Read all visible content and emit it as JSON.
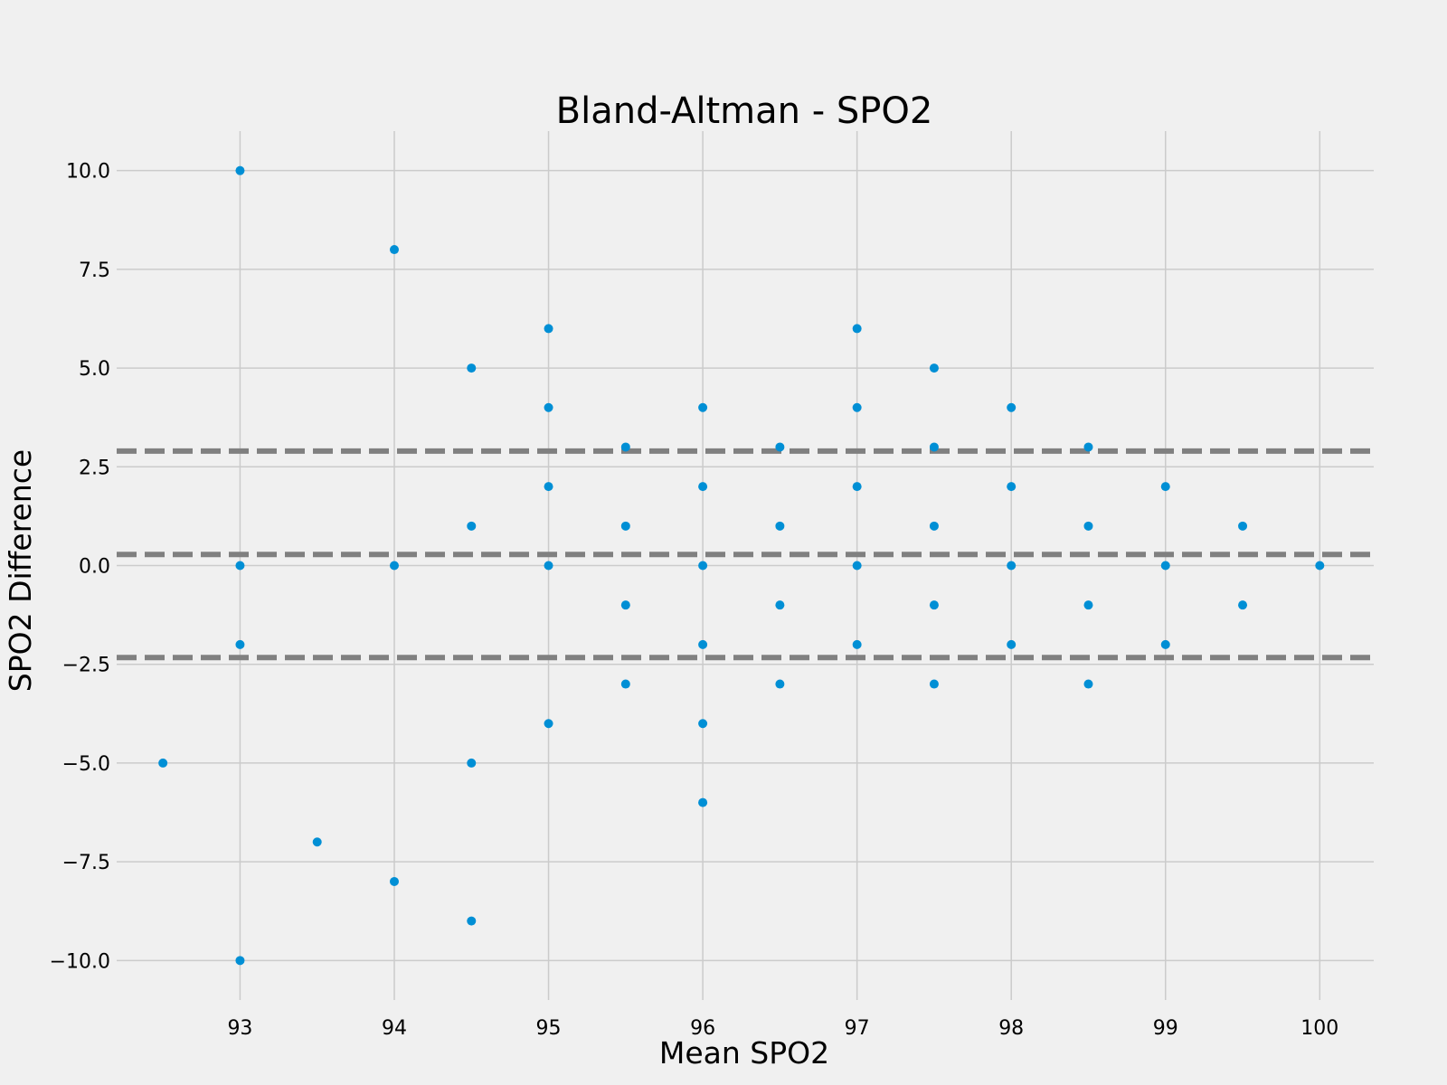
{
  "chart_data": {
    "type": "scatter",
    "title": "Bland-Altman - SPO2",
    "xlabel": "Mean SPO2",
    "ylabel": "SPO2 Difference",
    "xlim": [
      92.2,
      100.35
    ],
    "ylim": [
      -11,
      11
    ],
    "xticks": [
      93,
      94,
      95,
      96,
      97,
      98,
      99,
      100
    ],
    "yticks": [
      -10.0,
      -7.5,
      -5.0,
      -2.5,
      0.0,
      2.5,
      5.0,
      7.5,
      10.0
    ],
    "ytick_labels": [
      "−10.0",
      "−7.5",
      "−5.0",
      "−2.5",
      "0.0",
      "2.5",
      "5.0",
      "7.5",
      "10.0"
    ],
    "grid": true,
    "point_color": "#008fd5",
    "line_color": "#808080",
    "reference_lines": {
      "mean_difference": 0.28,
      "upper_limit": 2.9,
      "lower_limit": -2.33
    },
    "points": [
      {
        "x": 92.5,
        "y": -5
      },
      {
        "x": 93,
        "y": 10
      },
      {
        "x": 93,
        "y": 0
      },
      {
        "x": 93,
        "y": -2
      },
      {
        "x": 93,
        "y": -10
      },
      {
        "x": 93.5,
        "y": -7
      },
      {
        "x": 94,
        "y": 8
      },
      {
        "x": 94,
        "y": 0
      },
      {
        "x": 94,
        "y": -8
      },
      {
        "x": 94.5,
        "y": 5
      },
      {
        "x": 94.5,
        "y": 1
      },
      {
        "x": 94.5,
        "y": -5
      },
      {
        "x": 94.5,
        "y": -9
      },
      {
        "x": 95,
        "y": 6
      },
      {
        "x": 95,
        "y": 4
      },
      {
        "x": 95,
        "y": 2
      },
      {
        "x": 95,
        "y": 0
      },
      {
        "x": 95,
        "y": -4
      },
      {
        "x": 95.5,
        "y": 3
      },
      {
        "x": 95.5,
        "y": 1
      },
      {
        "x": 95.5,
        "y": -1
      },
      {
        "x": 95.5,
        "y": -3
      },
      {
        "x": 96,
        "y": 4
      },
      {
        "x": 96,
        "y": 2
      },
      {
        "x": 96,
        "y": 0
      },
      {
        "x": 96,
        "y": -2
      },
      {
        "x": 96,
        "y": -4
      },
      {
        "x": 96,
        "y": -6
      },
      {
        "x": 96.5,
        "y": 3
      },
      {
        "x": 96.5,
        "y": 1
      },
      {
        "x": 96.5,
        "y": -1
      },
      {
        "x": 96.5,
        "y": -3
      },
      {
        "x": 97,
        "y": 6
      },
      {
        "x": 97,
        "y": 4
      },
      {
        "x": 97,
        "y": 2
      },
      {
        "x": 97,
        "y": 0
      },
      {
        "x": 97,
        "y": -2
      },
      {
        "x": 97.5,
        "y": 5
      },
      {
        "x": 97.5,
        "y": 3
      },
      {
        "x": 97.5,
        "y": 1
      },
      {
        "x": 97.5,
        "y": -1
      },
      {
        "x": 97.5,
        "y": -3
      },
      {
        "x": 98,
        "y": 4
      },
      {
        "x": 98,
        "y": 2
      },
      {
        "x": 98,
        "y": 0
      },
      {
        "x": 98,
        "y": -2
      },
      {
        "x": 98.5,
        "y": 3
      },
      {
        "x": 98.5,
        "y": 1
      },
      {
        "x": 98.5,
        "y": -1
      },
      {
        "x": 98.5,
        "y": -3
      },
      {
        "x": 99,
        "y": 2
      },
      {
        "x": 99,
        "y": 0
      },
      {
        "x": 99,
        "y": -2
      },
      {
        "x": 99.5,
        "y": 1
      },
      {
        "x": 99.5,
        "y": -1
      },
      {
        "x": 100,
        "y": 0
      }
    ]
  }
}
